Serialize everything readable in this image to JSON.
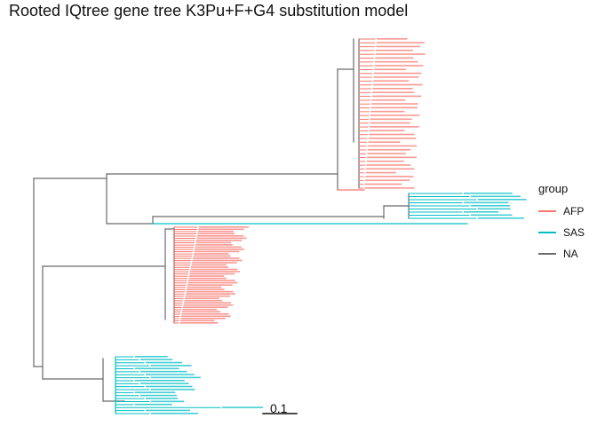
{
  "title": "Rooted IQtree gene tree K3Pu+F+G4 substitution model",
  "legend": {
    "title": "group",
    "items": [
      {
        "label": "AFP",
        "color": "#F8766D"
      },
      {
        "label": "SAS",
        "color": "#00BFC4"
      },
      {
        "label": "NA",
        "color": "#6b6b6b"
      }
    ]
  },
  "scale_bar": {
    "label": "0.1",
    "value": 0.1
  },
  "colors": {
    "AFP": "#F8766D",
    "SAS": "#00BFC4",
    "NA": "#6b6b6b"
  },
  "tree": {
    "clades": [
      {
        "group": "AFP",
        "tip_count": 40
      },
      {
        "group": "SAS",
        "tip_count": 9
      },
      {
        "group": "AFP",
        "tip_count": 44
      },
      {
        "group": "SAS",
        "tip_count": 20
      }
    ]
  }
}
